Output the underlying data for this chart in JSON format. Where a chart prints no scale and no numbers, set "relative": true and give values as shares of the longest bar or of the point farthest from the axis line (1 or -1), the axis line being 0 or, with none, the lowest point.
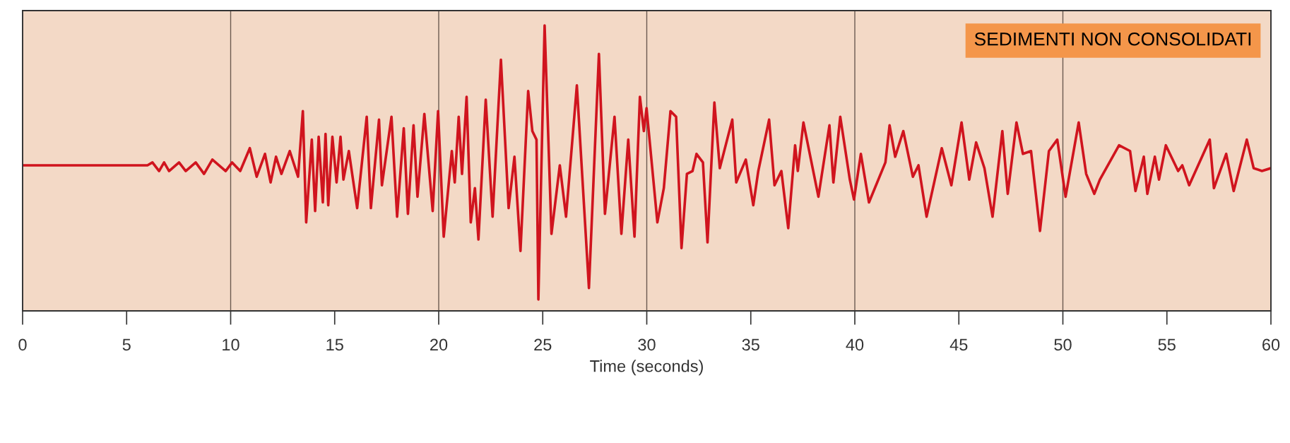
{
  "chart_data": {
    "type": "line",
    "relative": true,
    "xlabel": "Time (seconds)",
    "annotations": [
      "SEDIMENTI NON CONSOLIDATI"
    ],
    "xlim": [
      0,
      60
    ],
    "xticks": [
      0,
      5,
      10,
      15,
      20,
      25,
      30,
      35,
      40,
      45,
      50,
      55,
      60
    ],
    "ref_lines": [
      {
        "axis": "x",
        "value": 10,
        "color": "#6b5a50"
      },
      {
        "axis": "x",
        "value": 20,
        "color": "#6b5a50"
      },
      {
        "axis": "x",
        "value": 30,
        "color": "#6b5a50"
      },
      {
        "axis": "x",
        "value": 40,
        "color": "#6b5a50"
      },
      {
        "axis": "x",
        "value": 50,
        "color": "#6b5a50"
      }
    ],
    "series": [
      {
        "color": "#d0141e",
        "x": [
          0,
          6.0,
          6.24,
          6.56,
          6.8,
          7.04,
          7.52,
          7.84,
          8.32,
          8.72,
          9.12,
          9.76,
          10.07,
          10.46,
          10.92,
          11.25,
          11.65,
          11.92,
          12.18,
          12.44,
          12.84,
          13.24,
          13.47,
          13.63,
          13.9,
          14.06,
          14.23,
          14.43,
          14.56,
          14.69,
          14.89,
          15.09,
          15.28,
          15.42,
          15.68,
          16.08,
          16.54,
          16.74,
          17.13,
          17.27,
          17.73,
          18.0,
          18.32,
          18.52,
          18.79,
          18.98,
          19.31,
          19.71,
          19.97,
          20.24,
          20.63,
          20.77,
          20.96,
          21.12,
          21.34,
          21.54,
          21.74,
          21.91,
          22.26,
          22.59,
          22.99,
          23.36,
          23.64,
          23.93,
          24.3,
          24.5,
          24.7,
          24.79,
          25.09,
          25.42,
          25.82,
          26.12,
          26.64,
          27.22,
          27.7,
          27.99,
          28.45,
          28.78,
          29.11,
          29.41,
          29.67,
          29.86,
          29.99,
          30.51,
          30.82,
          31.14,
          31.41,
          31.67,
          31.93,
          32.2,
          32.39,
          32.7,
          32.92,
          33.25,
          33.51,
          34.11,
          34.3,
          34.76,
          35.12,
          35.36,
          35.88,
          36.14,
          36.47,
          36.8,
          37.13,
          37.26,
          37.53,
          38.25,
          38.78,
          38.97,
          39.3,
          39.76,
          39.96,
          40.29,
          40.68,
          41.47,
          41.67,
          41.94,
          42.33,
          42.79,
          43.06,
          43.45,
          44.18,
          44.64,
          45.13,
          45.5,
          45.83,
          46.23,
          46.62,
          47.09,
          47.35,
          47.77,
          48.08,
          48.47,
          48.9,
          49.33,
          49.73,
          50.13,
          50.76,
          51.12,
          51.51,
          51.78,
          52.7,
          53.23,
          53.49,
          53.89,
          54.06,
          54.42,
          54.62,
          54.95,
          55.54,
          55.74,
          56.07,
          57.06,
          57.26,
          57.85,
          58.21,
          58.84,
          59.17,
          59.57,
          60.0
        ],
        "values": [
          0.51,
          0.51,
          0.52,
          0.49,
          0.52,
          0.49,
          0.52,
          0.49,
          0.52,
          0.48,
          0.53,
          0.49,
          0.52,
          0.49,
          0.57,
          0.47,
          0.55,
          0.45,
          0.54,
          0.48,
          0.56,
          0.47,
          0.7,
          0.31,
          0.6,
          0.35,
          0.61,
          0.38,
          0.62,
          0.37,
          0.61,
          0.45,
          0.61,
          0.46,
          0.56,
          0.36,
          0.68,
          0.36,
          0.67,
          0.44,
          0.68,
          0.33,
          0.64,
          0.34,
          0.65,
          0.4,
          0.69,
          0.35,
          0.7,
          0.26,
          0.56,
          0.45,
          0.68,
          0.48,
          0.75,
          0.31,
          0.43,
          0.25,
          0.74,
          0.33,
          0.88,
          0.36,
          0.54,
          0.21,
          0.77,
          0.63,
          0.6,
          0.04,
          1,
          0.27,
          0.51,
          0.33,
          0.79,
          0.08,
          0.9,
          0.34,
          0.68,
          0.27,
          0.6,
          0.26,
          0.75,
          0.63,
          0.71,
          0.31,
          0.43,
          0.7,
          0.68,
          0.22,
          0.48,
          0.49,
          0.55,
          0.52,
          0.24,
          0.73,
          0.5,
          0.67,
          0.45,
          0.53,
          0.37,
          0.49,
          0.67,
          0.44,
          0.49,
          0.29,
          0.58,
          0.49,
          0.66,
          0.4,
          0.65,
          0.45,
          0.68,
          0.46,
          0.39,
          0.55,
          0.38,
          0.52,
          0.65,
          0.54,
          0.63,
          0.47,
          0.51,
          0.33,
          0.57,
          0.44,
          0.66,
          0.46,
          0.59,
          0.5,
          0.33,
          0.63,
          0.41,
          0.66,
          0.55,
          0.56,
          0.28,
          0.56,
          0.6,
          0.4,
          0.66,
          0.48,
          0.41,
          0.46,
          0.58,
          0.56,
          0.42,
          0.54,
          0.41,
          0.54,
          0.46,
          0.58,
          0.49,
          0.51,
          0.44,
          0.6,
          0.43,
          0.55,
          0.42,
          0.6,
          0.5,
          0.49,
          0.5
        ]
      }
    ]
  }
}
